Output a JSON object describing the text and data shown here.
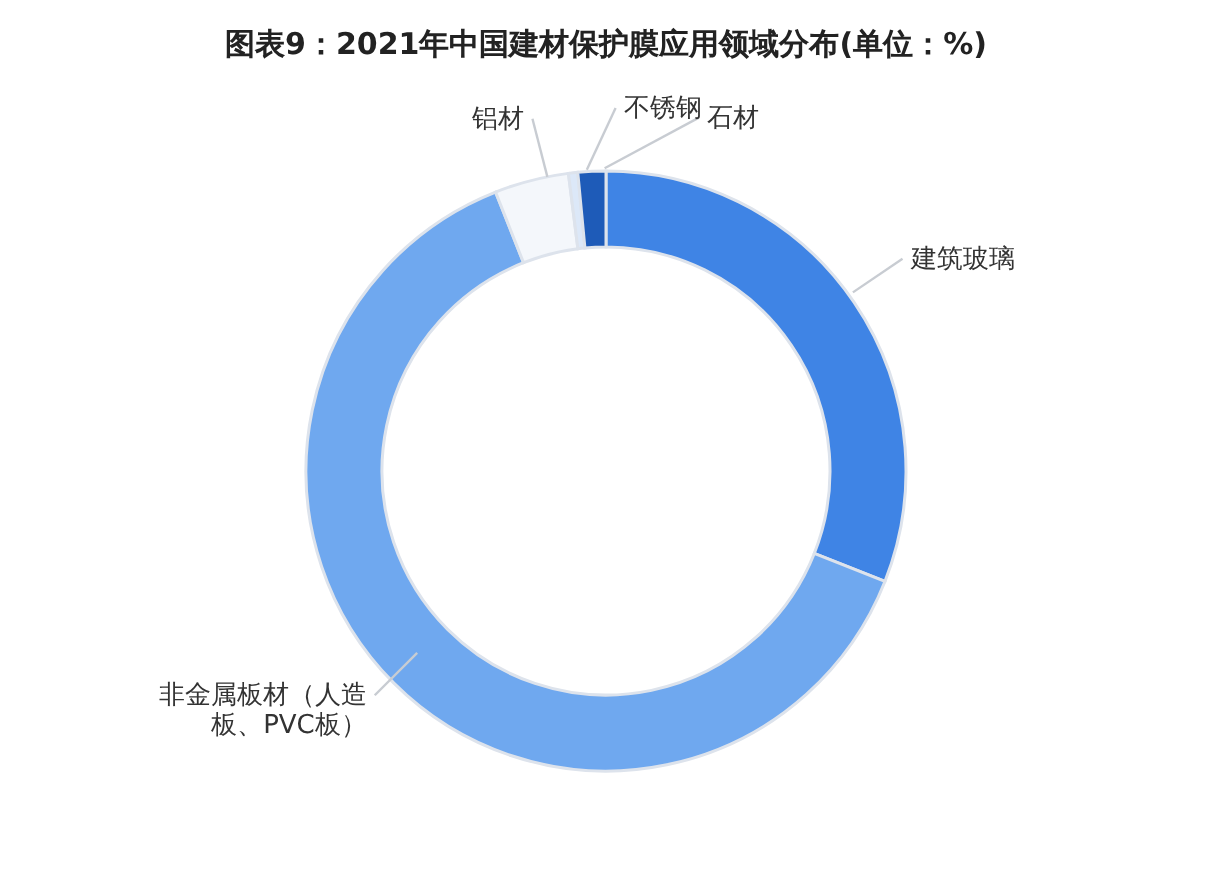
{
  "chart_data": {
    "type": "donut",
    "title": "图表9：2021年中国建材保护膜应用领域分布(单位：%)",
    "categories": [
      "建筑玻璃",
      "非金属板材（人造板、PVC板）",
      "铝材",
      "不锈钢",
      "石材"
    ],
    "values": [
      31,
      63,
      4,
      0.5,
      1.5
    ],
    "colors": [
      "#3f84e5",
      "#6fa8ef",
      "#f4f7fb",
      "#dce8f8",
      "#1e5bb8"
    ]
  }
}
